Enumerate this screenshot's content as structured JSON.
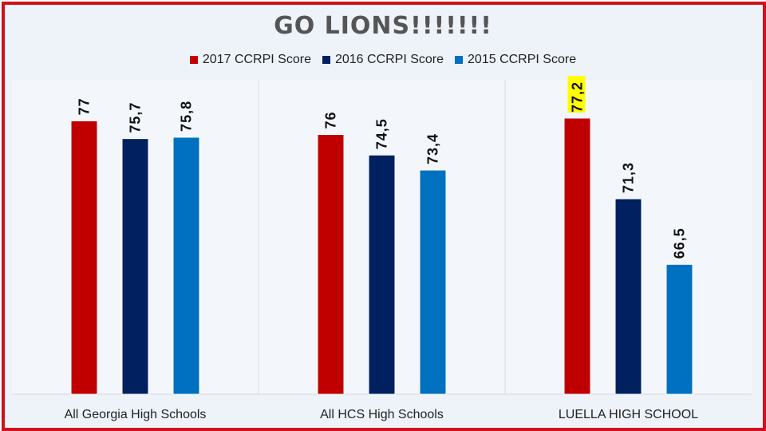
{
  "chart_data": {
    "type": "bar",
    "title": "GO LIONS!!!!!!!",
    "categories": [
      "All Georgia High Schools",
      "All HCS High Schools",
      "LUELLA HIGH SCHOOL"
    ],
    "series": [
      {
        "name": "2017 CCRPI Score",
        "color": "#c00000",
        "values": [
          77,
          76,
          77.2
        ],
        "labels": [
          "77",
          "76",
          "77,2"
        ]
      },
      {
        "name": "2016 CCRPI Score",
        "color": "#002060",
        "values": [
          75.7,
          74.5,
          71.3
        ],
        "labels": [
          "75,7",
          "74,5",
          "71,3"
        ]
      },
      {
        "name": "2015 CCRPI Score",
        "color": "#0070c0",
        "values": [
          75.8,
          73.4,
          66.5
        ],
        "labels": [
          "75,8",
          "73,4",
          "66,5"
        ]
      }
    ],
    "ylim": [
      57,
      80
    ],
    "xlabel": "",
    "ylabel": "",
    "legend_position": "top",
    "highlighted_label": "77,2",
    "highlight_color": "#ffff00"
  }
}
